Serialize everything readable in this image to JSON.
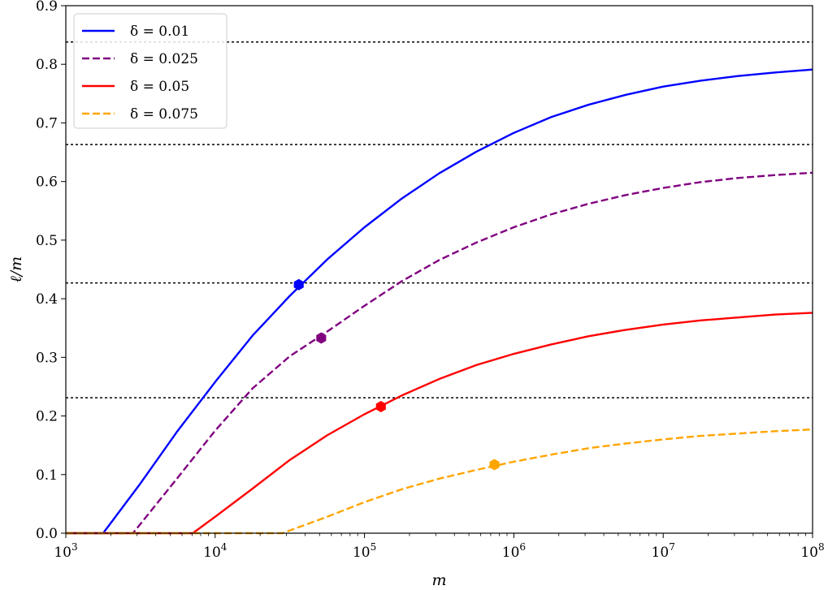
{
  "chart_data": {
    "type": "line",
    "title": "",
    "xlabel": "m",
    "ylabel": "ℓ/m",
    "xscale": "log",
    "xlim": [
      1000,
      100000000
    ],
    "ylim": [
      0,
      0.9
    ],
    "grid": false,
    "legend_position": "top-left",
    "x_ticks": [
      {
        "value": 1000,
        "base": "10",
        "exp": "3"
      },
      {
        "value": 10000,
        "base": "10",
        "exp": "4"
      },
      {
        "value": 100000,
        "base": "10",
        "exp": "5"
      },
      {
        "value": 1000000,
        "base": "10",
        "exp": "6"
      },
      {
        "value": 10000000,
        "base": "10",
        "exp": "7"
      },
      {
        "value": 100000000,
        "base": "10",
        "exp": "8"
      }
    ],
    "y_ticks": [
      {
        "value": 0.0,
        "label": "0.0"
      },
      {
        "value": 0.1,
        "label": "0.1"
      },
      {
        "value": 0.2,
        "label": "0.2"
      },
      {
        "value": 0.3,
        "label": "0.3"
      },
      {
        "value": 0.4,
        "label": "0.4"
      },
      {
        "value": 0.5,
        "label": "0.5"
      },
      {
        "value": 0.6,
        "label": "0.6"
      },
      {
        "value": 0.7,
        "label": "0.7"
      },
      {
        "value": 0.8,
        "label": "0.8"
      },
      {
        "value": 0.9,
        "label": "0.9"
      }
    ],
    "reference_lines": [
      0.838,
      0.663,
      0.427,
      0.231
    ],
    "series": [
      {
        "name": "δ = 0.01",
        "color": "#0000ff",
        "dash": "solid",
        "x": [
          1000,
          1778,
          3162,
          5623,
          10000,
          17783,
          31623,
          56234,
          100000,
          177828,
          316228,
          562341,
          1000000,
          1778279,
          3162278,
          5623413,
          10000000,
          17782794,
          31622777,
          56234133,
          100000000
        ],
        "y": [
          0,
          0,
          0.085,
          0.175,
          0.258,
          0.337,
          0.405,
          0.467,
          0.522,
          0.571,
          0.614,
          0.651,
          0.683,
          0.71,
          0.731,
          0.748,
          0.762,
          0.772,
          0.78,
          0.786,
          0.791
        ],
        "marker": {
          "x": 36300,
          "y": 0.424
        }
      },
      {
        "name": "δ = 0.025",
        "color": "#800080",
        "dash": "dashed",
        "x": [
          1000,
          2818,
          5623,
          10000,
          17783,
          31623,
          56234,
          100000,
          177828,
          316228,
          562341,
          1000000,
          1778279,
          3162278,
          5623413,
          10000000,
          17782794,
          31622777,
          56234133,
          100000000
        ],
        "y": [
          0,
          0,
          0.095,
          0.175,
          0.247,
          0.302,
          0.344,
          0.388,
          0.43,
          0.466,
          0.496,
          0.522,
          0.544,
          0.562,
          0.577,
          0.589,
          0.599,
          0.606,
          0.611,
          0.615
        ],
        "marker": {
          "x": 51300,
          "y": 0.333
        }
      },
      {
        "name": "δ = 0.05",
        "color": "#ff0000",
        "dash": "solid",
        "x": [
          1000,
          7079,
          10000,
          17783,
          31623,
          56234,
          100000,
          177828,
          316228,
          562341,
          1000000,
          1778279,
          3162278,
          5623413,
          10000000,
          17782794,
          31622777,
          56234133,
          100000000
        ],
        "y": [
          0,
          0,
          0.028,
          0.076,
          0.125,
          0.167,
          0.203,
          0.235,
          0.263,
          0.287,
          0.306,
          0.322,
          0.336,
          0.347,
          0.356,
          0.363,
          0.368,
          0.373,
          0.376
        ],
        "marker": {
          "x": 128800,
          "y": 0.216
        }
      },
      {
        "name": "δ = 0.075",
        "color": "#ffa500",
        "dash": "dashed",
        "x": [
          1000,
          28184,
          56234,
          100000,
          177828,
          316228,
          562341,
          1000000,
          1778279,
          3162278,
          5623413,
          10000000,
          17782794,
          31622777,
          56234133,
          100000000
        ],
        "y": [
          0,
          0,
          0.028,
          0.053,
          0.075,
          0.093,
          0.108,
          0.122,
          0.134,
          0.145,
          0.153,
          0.16,
          0.166,
          0.17,
          0.174,
          0.177
        ],
        "marker": {
          "x": 741300,
          "y": 0.117
        }
      }
    ]
  }
}
